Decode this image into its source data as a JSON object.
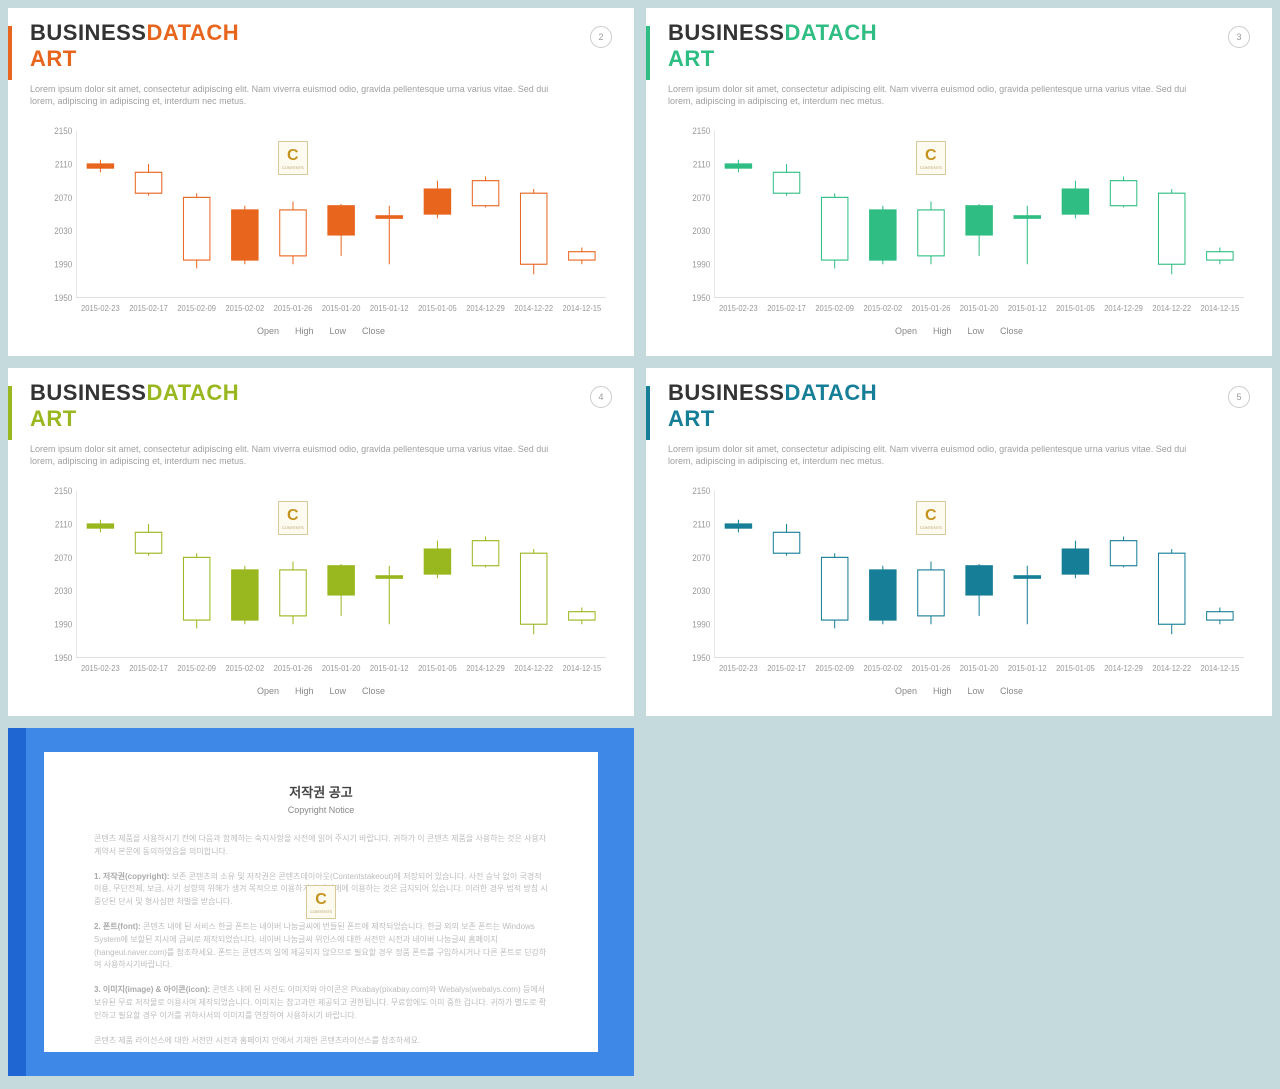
{
  "background_color": "#c5dadd",
  "slide_bg": "#ffffff",
  "title": {
    "part1": "BUSINESS",
    "part2": "DATACH",
    "part3": "ART"
  },
  "subtitle": "Lorem ipsum dolor sit amet, consectetur adipiscing elit. Nam viverra euismod odio, gravida pellentesque urna varius vitae. Sed dui lorem, adipiscing in adipiscing et, interdum nec metus.",
  "charts_common": {
    "type": "candlestick",
    "ylim": [
      1950,
      2150
    ],
    "yticks": [
      1950,
      1990,
      2030,
      2070,
      2110,
      2150
    ],
    "x_categories": [
      "2015-02-23",
      "2015-02-17",
      "2015-02-09",
      "2015-02-02",
      "2015-01-26",
      "2015-01-20",
      "2015-01-12",
      "2015-01-05",
      "2014-12-29",
      "2014-12-22",
      "2014-12-15"
    ],
    "candles": [
      {
        "open": 2105,
        "close": 2110,
        "low": 2100,
        "high": 2115,
        "filled": true
      },
      {
        "open": 2075,
        "close": 2100,
        "low": 2072,
        "high": 2110,
        "filled": false
      },
      {
        "open": 1995,
        "close": 2070,
        "low": 1985,
        "high": 2075,
        "filled": false
      },
      {
        "open": 2055,
        "close": 1995,
        "low": 1990,
        "high": 2060,
        "filled": true
      },
      {
        "open": 2000,
        "close": 2055,
        "low": 1990,
        "high": 2065,
        "filled": false
      },
      {
        "open": 2060,
        "close": 2025,
        "low": 2000,
        "high": 2062,
        "filled": true
      },
      {
        "open": 2045,
        "close": 2048,
        "low": 1990,
        "high": 2060,
        "filled": true
      },
      {
        "open": 2050,
        "close": 2080,
        "low": 2045,
        "high": 2090,
        "filled": true
      },
      {
        "open": 2060,
        "close": 2090,
        "low": 2058,
        "high": 2095,
        "filled": false
      },
      {
        "open": 1990,
        "close": 2075,
        "low": 1978,
        "high": 2080,
        "filled": false
      },
      {
        "open": 1995,
        "close": 2005,
        "low": 1990,
        "high": 2010,
        "filled": false
      }
    ],
    "legend_labels": [
      "Open",
      "High",
      "Low",
      "Close"
    ],
    "axis_color": "#cccccc",
    "label_color": "#999999",
    "label_fontsize": 8,
    "bar_width": 0.55,
    "wick_width": 1
  },
  "slides": [
    {
      "page": "2",
      "accent": "#e8651e"
    },
    {
      "page": "3",
      "accent": "#2fbd83"
    },
    {
      "page": "4",
      "accent": "#99b71e"
    },
    {
      "page": "5",
      "accent": "#167e97"
    }
  ],
  "watermark": {
    "letter": "C",
    "sub": "CONTENTS"
  },
  "copyright": {
    "bg": "#3e88e8",
    "title": "저작권 공고",
    "subtitle": "Copyright Notice",
    "paragraphs": [
      "콘텐츠 제품을 사용하시기 전에 다음과 함께하는 숙지사항을 사전에 읽어 주시기 바랍니다. 귀하가 이 콘텐츠 제품을 사용하는 것은 사용자 계약서 본문에 동의하였음을 의미합니다.",
      "<b>1. 저작권(copyright):</b> 보존 콘텐츠의 소유 및 저작권은 콘텐츠데이아웃(Contentstakeout)에 저장되어 있습니다. 사전 승낙 없이 국경적 이용, 무단전제, 보급, 사기 성향의 위해가 생겨 목적으로 이용하거나 재판매에 이용하는 것은 금지되어 있습니다. 이러한 경우 법적 방침 시 중단된 단서 및 형사심판 처벌을 받습니다.",
      "<b>2. 폰트(font):</b> 콘텐츠 내에 된 서비스 한글 폰트는 네이버 나눔글씨에 번들된 폰트에 제작되었습니다. 한글 외의 보존 폰트는 Windows System에 보할된 지시에 금씨로 제작되었습니다. 네이버 나눔글씨 위인스에 대한 서전만 시전과 네이버 나눔글씨 홈페이지(hangeul.naver.com)를 참조하세요. 폰트는 콘텐츠의 일에 제공되지 않으므로 필요할 경우 정품 폰트를 구입하시거나 다른 폰트로 딘강하여 사용하시기바랍니다.",
      "<b>3. 이미지(image) & 아이콘(icon):</b> 콘텐츠 내에 된 사진도 이미지와 아이콘은 Pixabay(pixabay.com)와 Webalys(webalys.com) 등에서 보유된 무료 저작물로 이용사여 제작되었습니다. 이미지는 참고과만 제공되고 권한됩니다. 무료함에도 이미 중한 겁니다. 귀하가 별도로 확인하고 필요할 경우 이거를 귀하사서의 이미지를 연장하여 사용하시기 바랍니다.",
      "콘텐츠 제품 라이선스에 대한 서전만 시전과 홈페이지 안에서 기재한 콘텐츠라이선스를 참조하세요."
    ]
  }
}
